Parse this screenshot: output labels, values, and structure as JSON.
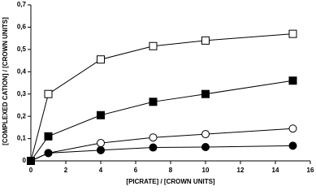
{
  "chart_data": {
    "type": "line",
    "x_label": "[PICRATE] / [CROWN UNITS]",
    "y_label": "[COMPLEXED CATION] / [CROWN UNITS]",
    "x": [
      0,
      1,
      4,
      7,
      10,
      15
    ],
    "series": [
      {
        "color": "#000000",
        "marker": "square",
        "filled": false,
        "values": [
          0,
          0.3,
          0.455,
          0.515,
          0.54,
          0.57
        ]
      },
      {
        "color": "#000000",
        "marker": "square",
        "filled": true,
        "values": [
          0,
          0.11,
          0.205,
          0.265,
          0.3,
          0.36
        ]
      },
      {
        "color": "#000000",
        "marker": "circle",
        "filled": false,
        "values": [
          0,
          0.035,
          0.08,
          0.105,
          0.12,
          0.145
        ]
      },
      {
        "color": "#000000",
        "marker": "circle",
        "filled": true,
        "values": [
          0,
          0.035,
          0.048,
          0.06,
          0.062,
          0.068
        ]
      }
    ],
    "xlim": [
      0,
      16
    ],
    "xticks": [
      0,
      2,
      4,
      6,
      8,
      10,
      12,
      14,
      16
    ],
    "ylim": [
      0,
      0.7
    ],
    "yticks": [
      0,
      {
        "value": 0.1,
        "label": "0,1"
      },
      {
        "value": 0.2,
        "label": "0,2"
      },
      {
        "value": 0.3,
        "label": "0,3"
      },
      {
        "value": 0.4,
        "label": "0,4"
      },
      {
        "value": 0.5,
        "label": "0,5"
      },
      {
        "value": 0.6,
        "label": "0,6"
      },
      {
        "value": 0.7,
        "label": "0,7"
      }
    ],
    "grid": false
  }
}
